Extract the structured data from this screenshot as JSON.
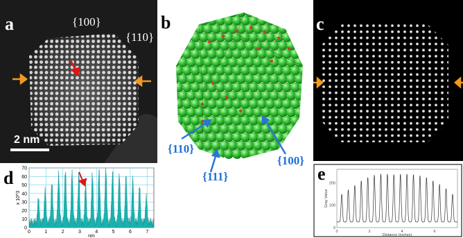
{
  "panel_a": {
    "letter": "a",
    "facet_top": "{100}",
    "facet_corner": "{110}",
    "scale_label": "2 nm"
  },
  "panel_b": {
    "letter": "b",
    "labels": {
      "left": "{110}",
      "bottom": "{111}",
      "right": "{100}"
    }
  },
  "panel_c": {
    "letter": "c"
  },
  "panel_d": {
    "letter": "d",
    "chart_data": {
      "type": "area",
      "title": "",
      "xlabel": "nm",
      "ylabel": "x 10^3",
      "xlim": [
        0,
        7.4
      ],
      "ylim": [
        0,
        70
      ],
      "x_ticks": [
        "0",
        "1",
        "2",
        "3",
        "4",
        "5",
        "6",
        "7"
      ],
      "y_ticks": [
        "0",
        "10",
        "20",
        "30",
        "40",
        "50",
        "60",
        "70"
      ],
      "peaks_x": [
        0.55,
        0.95,
        1.35,
        1.75,
        2.15,
        2.55,
        2.95,
        3.35,
        3.75,
        4.15,
        4.55,
        4.95,
        5.35,
        5.75,
        6.15,
        6.55,
        6.95
      ],
      "peaks_y": [
        28,
        38,
        47,
        58,
        62,
        60,
        55,
        45,
        56,
        62,
        64,
        60,
        58,
        55,
        50,
        42,
        30
      ],
      "grid": true,
      "fill_color": "#17b3b0"
    }
  },
  "panel_e": {
    "letter": "e",
    "chart_data": {
      "type": "line",
      "title": "",
      "xlabel": "Distance (inches)",
      "ylabel": "Gray Value",
      "xlim": [
        0,
        7.4
      ],
      "ylim": [
        0,
        260
      ],
      "x_ticks": [
        "0",
        "2",
        "4",
        "6"
      ],
      "y_ticks": [
        "0",
        "100",
        "200"
      ],
      "peaks_x": [
        0.3,
        0.7,
        1.1,
        1.5,
        1.9,
        2.3,
        2.7,
        3.1,
        3.5,
        3.9,
        4.3,
        4.7,
        5.1,
        5.5,
        5.9,
        6.3,
        6.7,
        7.1
      ],
      "peaks_y": [
        150,
        170,
        190,
        210,
        225,
        235,
        240,
        240,
        238,
        240,
        240,
        238,
        232,
        225,
        210,
        195,
        175,
        150
      ],
      "grid": false,
      "line_color": "#333333"
    }
  },
  "colors": {
    "arrow_orange": "#f39a1e",
    "arrow_red": "#e01515",
    "arrow_blue": "#2a74d6",
    "sphere_green": "#3ec83e",
    "sphere_red": "#d63a2a"
  }
}
